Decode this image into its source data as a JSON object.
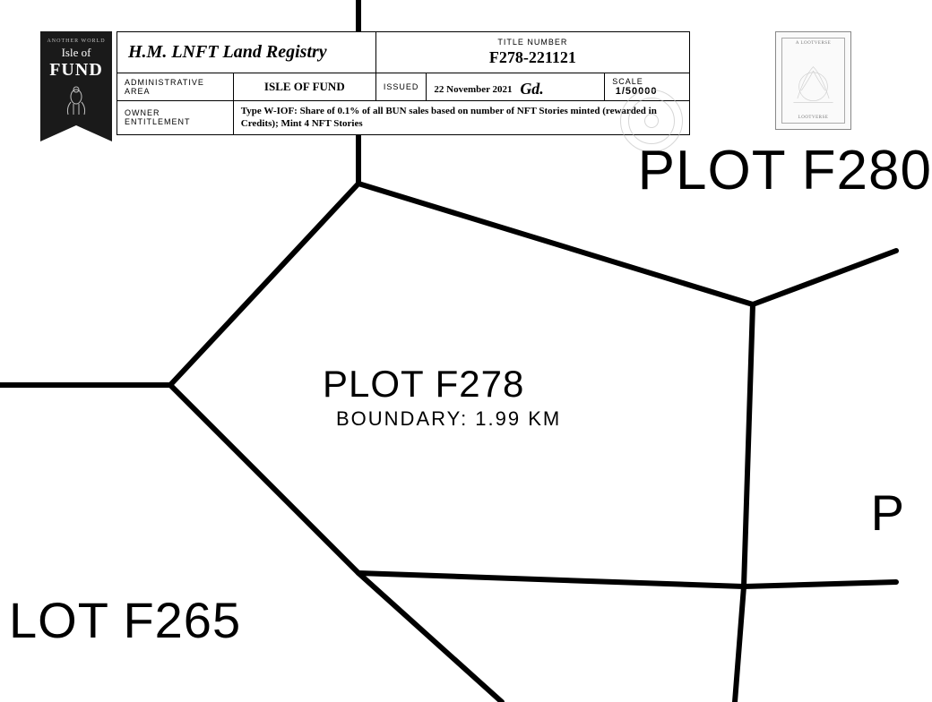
{
  "banner": {
    "top": "ANOTHER WORLD",
    "isle": "Isle of",
    "fund": "FUND"
  },
  "header": {
    "registry_title": "H.M. LNFT Land Registry",
    "title_number_label": "TITLE NUMBER",
    "title_number": "F278-221121",
    "admin_area_label": "ADMINISTRATIVE AREA",
    "admin_area": "ISLE OF FUND",
    "issued_label": "ISSUED",
    "issued_date": "22 November 2021",
    "scale_label": "SCALE",
    "scale_value": "1/50000",
    "owner_label": "OWNER ENTITLEMENT",
    "entitlement": "Type W-IOF: Share of 0.1% of all BUN sales based on number of NFT Stories minted (rewarded in Credits); Mint 4 NFT Stories",
    "signature": "Gd."
  },
  "stamp": {
    "top_text": "A LOOTVERSE",
    "bottom_text": "LOOTVERSE"
  },
  "plots": {
    "main_label": "PLOT F278",
    "boundary": "BOUNDARY: 1.99 KM",
    "top_label": "PLOT F280",
    "bottom_left_label": "LOT F265",
    "right_label": "P"
  },
  "map": {
    "stroke": "#000000",
    "stroke_width": 6,
    "lines": [
      "M 400 0 L 400 205",
      "M 400 205 L 190 430",
      "M 190 430 L 0 430",
      "M 190 430 L 400 640",
      "M 400 640 L 560 784",
      "M 400 640 L 830 655",
      "M 400 205 L 840 340",
      "M 840 340 L 830 655",
      "M 840 340 L 1000 280",
      "M 830 655 L 1000 650",
      "M 830 655 L 820 784"
    ]
  }
}
